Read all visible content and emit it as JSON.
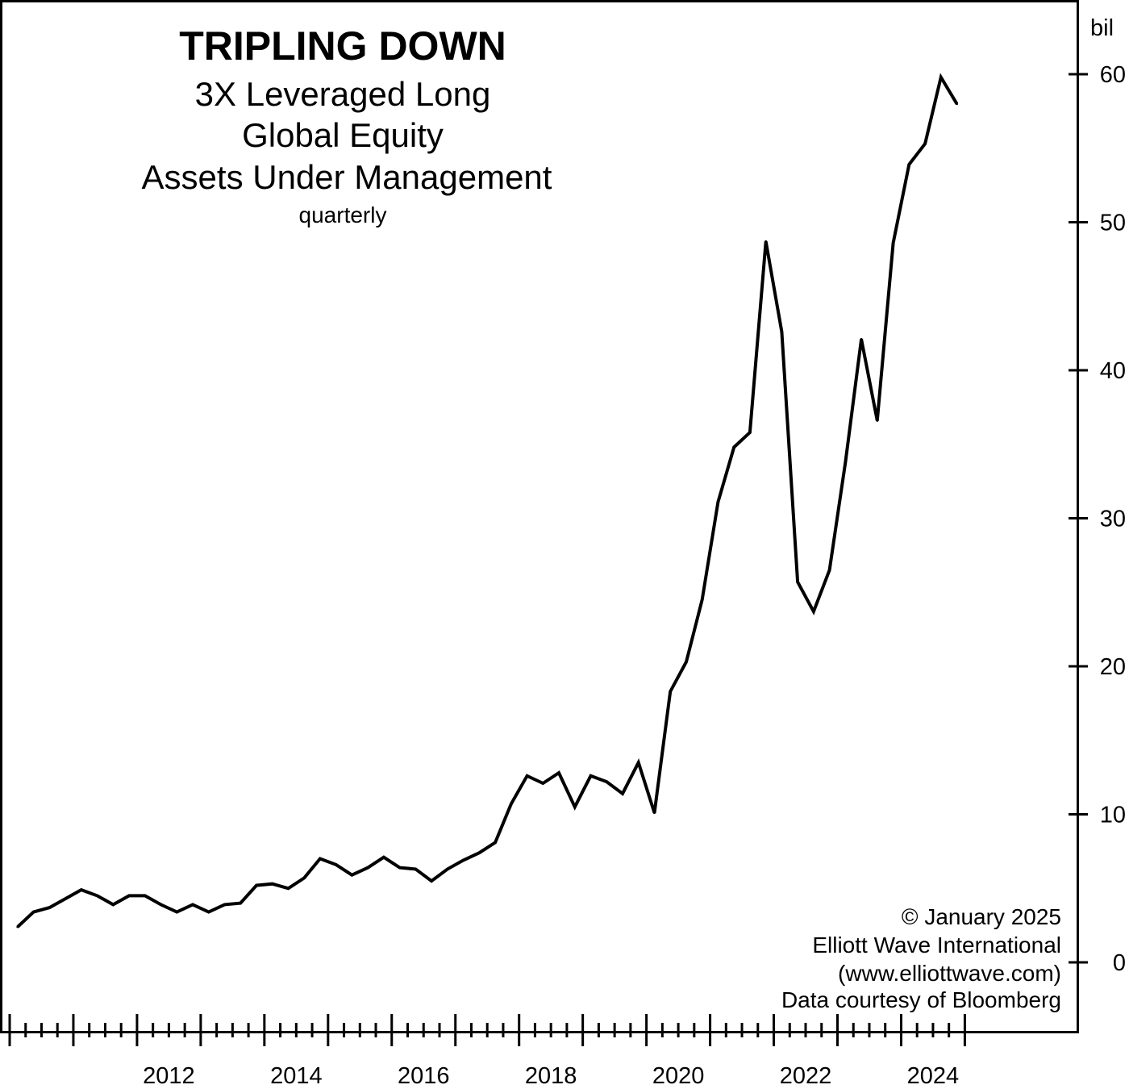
{
  "chart_data": {
    "type": "line",
    "title": "TRIPLING DOWN",
    "subtitle_lines": [
      "3X Leveraged Long",
      "Global Equity",
      "Assets Under Management"
    ],
    "frequency_note": "quarterly",
    "ylabel": "bil",
    "ylim": [
      0,
      60
    ],
    "yticks": [
      0,
      10,
      20,
      30,
      40,
      50,
      60
    ],
    "xlim": [
      2010,
      2025.4
    ],
    "xticks": [
      2012,
      2014,
      2016,
      2018,
      2020,
      2022,
      2024
    ],
    "grid": false,
    "series": [
      {
        "x": [
          2010.125,
          2010.375,
          2010.625,
          2010.875,
          2011.125,
          2011.375,
          2011.625,
          2011.875,
          2012.125,
          2012.375,
          2012.625,
          2012.875,
          2013.125,
          2013.375,
          2013.625,
          2013.875,
          2014.125,
          2014.375,
          2014.625,
          2014.875,
          2015.125,
          2015.375,
          2015.625,
          2015.875,
          2016.125,
          2016.375,
          2016.625,
          2016.875,
          2017.125,
          2017.375,
          2017.625,
          2017.875,
          2018.125,
          2018.375,
          2018.625,
          2018.875,
          2019.125,
          2019.375,
          2019.625,
          2019.875,
          2020.125,
          2020.375,
          2020.625,
          2020.875,
          2021.125,
          2021.375,
          2021.625,
          2021.875,
          2022.125,
          2022.375,
          2022.625,
          2022.875,
          2023.125,
          2023.375,
          2023.625,
          2023.875,
          2024.125,
          2024.375,
          2024.625,
          2024.875
        ],
        "values": [
          2.4,
          3.4,
          3.7,
          4.3,
          4.9,
          4.5,
          3.9,
          4.5,
          4.5,
          3.9,
          3.4,
          3.9,
          3.4,
          3.9,
          4.0,
          5.2,
          5.3,
          5.0,
          5.7,
          7.0,
          6.6,
          5.9,
          6.4,
          7.1,
          6.4,
          6.3,
          5.5,
          6.3,
          6.9,
          7.4,
          8.1,
          10.7,
          12.6,
          12.1,
          12.8,
          10.5,
          12.6,
          12.2,
          11.4,
          13.5,
          10.1,
          18.3,
          20.3,
          24.5,
          31.1,
          34.8,
          35.8,
          48.7,
          42.6,
          25.7,
          23.7,
          26.5,
          33.8,
          42.1,
          36.6,
          48.6,
          53.9,
          55.3,
          59.8,
          58.0
        ]
      }
    ]
  },
  "credits": [
    "© January 2025",
    "Elliott Wave International",
    "(www.elliottwave.com)",
    "Data courtesy of Bloomberg"
  ],
  "colors": {
    "line": "#000000",
    "background": "#ffffff",
    "frame": "#000000"
  }
}
